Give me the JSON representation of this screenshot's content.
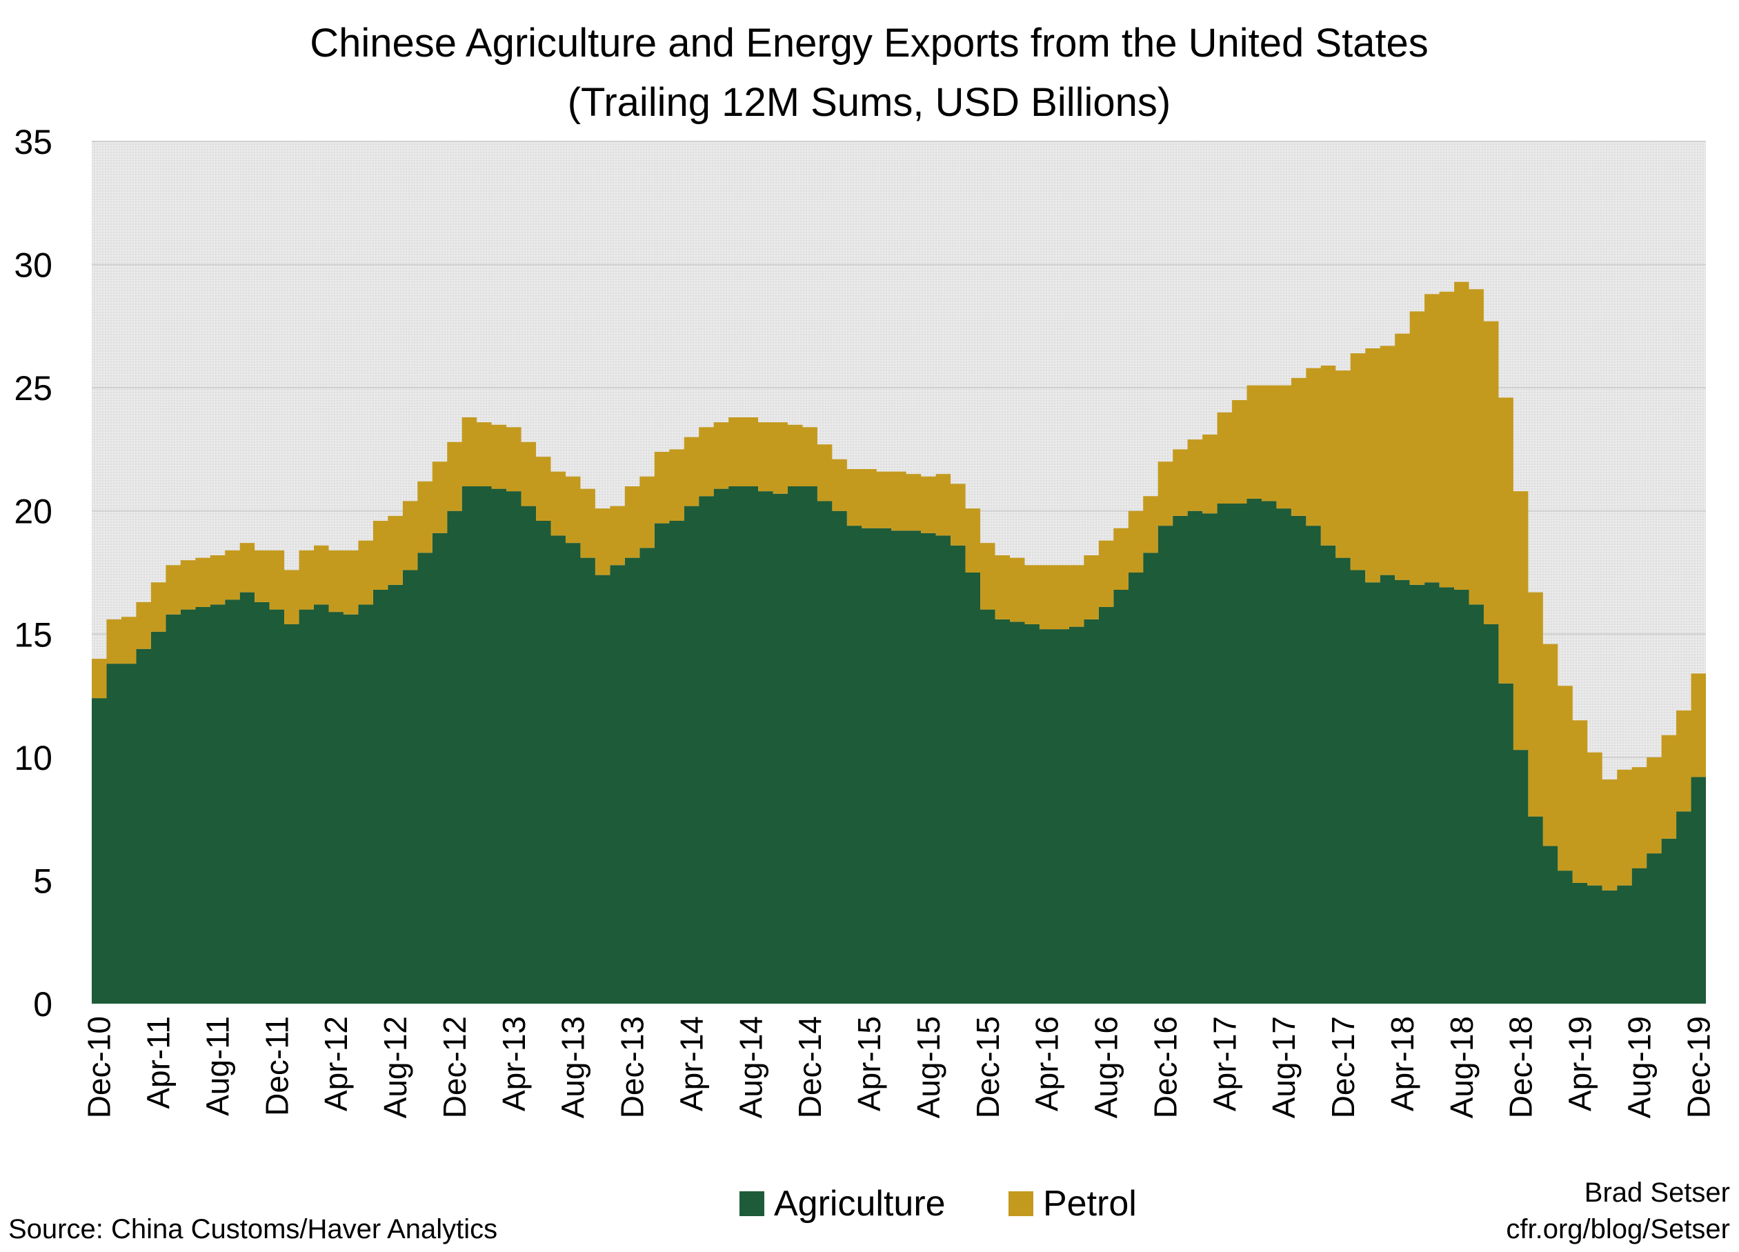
{
  "chart_data": {
    "type": "area",
    "stacked": true,
    "title": "Chinese Agriculture and Energy Exports from the United States",
    "subtitle": "(Trailing 12M Sums, USD Billions)",
    "xlabel": "",
    "ylabel": "",
    "ylim": [
      0,
      35
    ],
    "yticks": [
      0,
      5,
      10,
      15,
      20,
      25,
      30,
      35
    ],
    "grid": true,
    "legend_position": "bottom-center",
    "source": "Source: China Customs/Haver Analytics",
    "credit": [
      "Brad Setser",
      "cfr.org/blog/Setser"
    ],
    "x_tick_labels": [
      "Dec-10",
      "Apr-11",
      "Aug-11",
      "Dec-11",
      "Apr-12",
      "Aug-12",
      "Dec-12",
      "Apr-13",
      "Aug-13",
      "Dec-13",
      "Apr-14",
      "Aug-14",
      "Dec-14",
      "Apr-15",
      "Aug-15",
      "Dec-15",
      "Apr-16",
      "Aug-16",
      "Dec-16",
      "Apr-17",
      "Aug-17",
      "Dec-17",
      "Apr-18",
      "Aug-18",
      "Dec-18",
      "Apr-19",
      "Aug-19",
      "Dec-19"
    ],
    "categories": [
      "Dec-10",
      "Jan-11",
      "Feb-11",
      "Mar-11",
      "Apr-11",
      "May-11",
      "Jun-11",
      "Jul-11",
      "Aug-11",
      "Sep-11",
      "Oct-11",
      "Nov-11",
      "Dec-11",
      "Jan-12",
      "Feb-12",
      "Mar-12",
      "Apr-12",
      "May-12",
      "Jun-12",
      "Jul-12",
      "Aug-12",
      "Sep-12",
      "Oct-12",
      "Nov-12",
      "Dec-12",
      "Jan-13",
      "Feb-13",
      "Mar-13",
      "Apr-13",
      "May-13",
      "Jun-13",
      "Jul-13",
      "Aug-13",
      "Sep-13",
      "Oct-13",
      "Nov-13",
      "Dec-13",
      "Jan-14",
      "Feb-14",
      "Mar-14",
      "Apr-14",
      "May-14",
      "Jun-14",
      "Jul-14",
      "Aug-14",
      "Sep-14",
      "Oct-14",
      "Nov-14",
      "Dec-14",
      "Jan-15",
      "Feb-15",
      "Mar-15",
      "Apr-15",
      "May-15",
      "Jun-15",
      "Jul-15",
      "Aug-15",
      "Sep-15",
      "Oct-15",
      "Nov-15",
      "Dec-15",
      "Jan-16",
      "Feb-16",
      "Mar-16",
      "Apr-16",
      "May-16",
      "Jun-16",
      "Jul-16",
      "Aug-16",
      "Sep-16",
      "Oct-16",
      "Nov-16",
      "Dec-16",
      "Jan-17",
      "Feb-17",
      "Mar-17",
      "Apr-17",
      "May-17",
      "Jun-17",
      "Jul-17",
      "Aug-17",
      "Sep-17",
      "Oct-17",
      "Nov-17",
      "Dec-17",
      "Jan-18",
      "Feb-18",
      "Mar-18",
      "Apr-18",
      "May-18",
      "Jun-18",
      "Jul-18",
      "Aug-18",
      "Sep-18",
      "Oct-18",
      "Nov-18",
      "Dec-18",
      "Jan-19",
      "Feb-19",
      "Mar-19",
      "Apr-19",
      "May-19",
      "Jun-19",
      "Jul-19",
      "Aug-19",
      "Sep-19",
      "Oct-19",
      "Nov-19",
      "Dec-19"
    ],
    "series": [
      {
        "name": "Agriculture",
        "color": "#1e5b38",
        "values": [
          12.4,
          13.8,
          13.8,
          14.4,
          15.1,
          15.8,
          16.0,
          16.1,
          16.2,
          16.4,
          16.7,
          16.3,
          16.0,
          15.4,
          16.0,
          16.2,
          15.9,
          15.8,
          16.2,
          16.8,
          17.0,
          17.6,
          18.3,
          19.1,
          20.0,
          21.0,
          21.0,
          20.9,
          20.8,
          20.2,
          19.6,
          19.0,
          18.7,
          18.1,
          17.4,
          17.8,
          18.1,
          18.5,
          19.5,
          19.6,
          20.2,
          20.6,
          20.9,
          21.0,
          21.0,
          20.8,
          20.7,
          21.0,
          21.0,
          20.4,
          20.0,
          19.4,
          19.3,
          19.3,
          19.2,
          19.2,
          19.1,
          19.0,
          18.6,
          17.5,
          16.0,
          15.6,
          15.5,
          15.4,
          15.2,
          15.2,
          15.3,
          15.6,
          16.1,
          16.8,
          17.5,
          18.3,
          19.4,
          19.8,
          20.0,
          19.9,
          20.3,
          20.3,
          20.5,
          20.4,
          20.1,
          19.8,
          19.4,
          18.6,
          18.1,
          17.6,
          17.1,
          17.4,
          17.2,
          17.0,
          17.1,
          16.9,
          16.8,
          16.2,
          15.4,
          13.0,
          10.3,
          7.6,
          6.4,
          5.4,
          4.9,
          4.8,
          4.6,
          4.8,
          5.5,
          6.1,
          6.7,
          7.8,
          9.2
        ]
      },
      {
        "name": "Petrol",
        "color": "#c49a1e",
        "values": [
          1.6,
          1.8,
          1.9,
          1.9,
          2.0,
          2.0,
          2.0,
          2.0,
          2.0,
          2.0,
          2.0,
          2.1,
          2.4,
          2.2,
          2.4,
          2.4,
          2.5,
          2.6,
          2.6,
          2.8,
          2.8,
          2.8,
          2.9,
          2.9,
          2.8,
          2.8,
          2.6,
          2.6,
          2.6,
          2.6,
          2.6,
          2.6,
          2.7,
          2.8,
          2.7,
          2.4,
          2.9,
          2.9,
          2.9,
          2.9,
          2.8,
          2.8,
          2.7,
          2.8,
          2.8,
          2.8,
          2.9,
          2.5,
          2.4,
          2.3,
          2.1,
          2.3,
          2.4,
          2.3,
          2.4,
          2.3,
          2.3,
          2.5,
          2.5,
          2.6,
          2.7,
          2.6,
          2.6,
          2.4,
          2.6,
          2.6,
          2.5,
          2.6,
          2.7,
          2.5,
          2.5,
          2.3,
          2.6,
          2.7,
          2.9,
          3.2,
          3.7,
          4.2,
          4.6,
          4.7,
          5.0,
          5.6,
          6.4,
          7.3,
          7.6,
          8.8,
          9.5,
          9.3,
          10.0,
          11.1,
          11.7,
          12.0,
          12.5,
          12.8,
          12.3,
          11.6,
          10.5,
          9.1,
          8.2,
          7.5,
          6.6,
          5.4,
          4.5,
          4.7,
          4.1,
          3.9,
          4.2,
          4.1,
          4.2
        ]
      }
    ]
  }
}
